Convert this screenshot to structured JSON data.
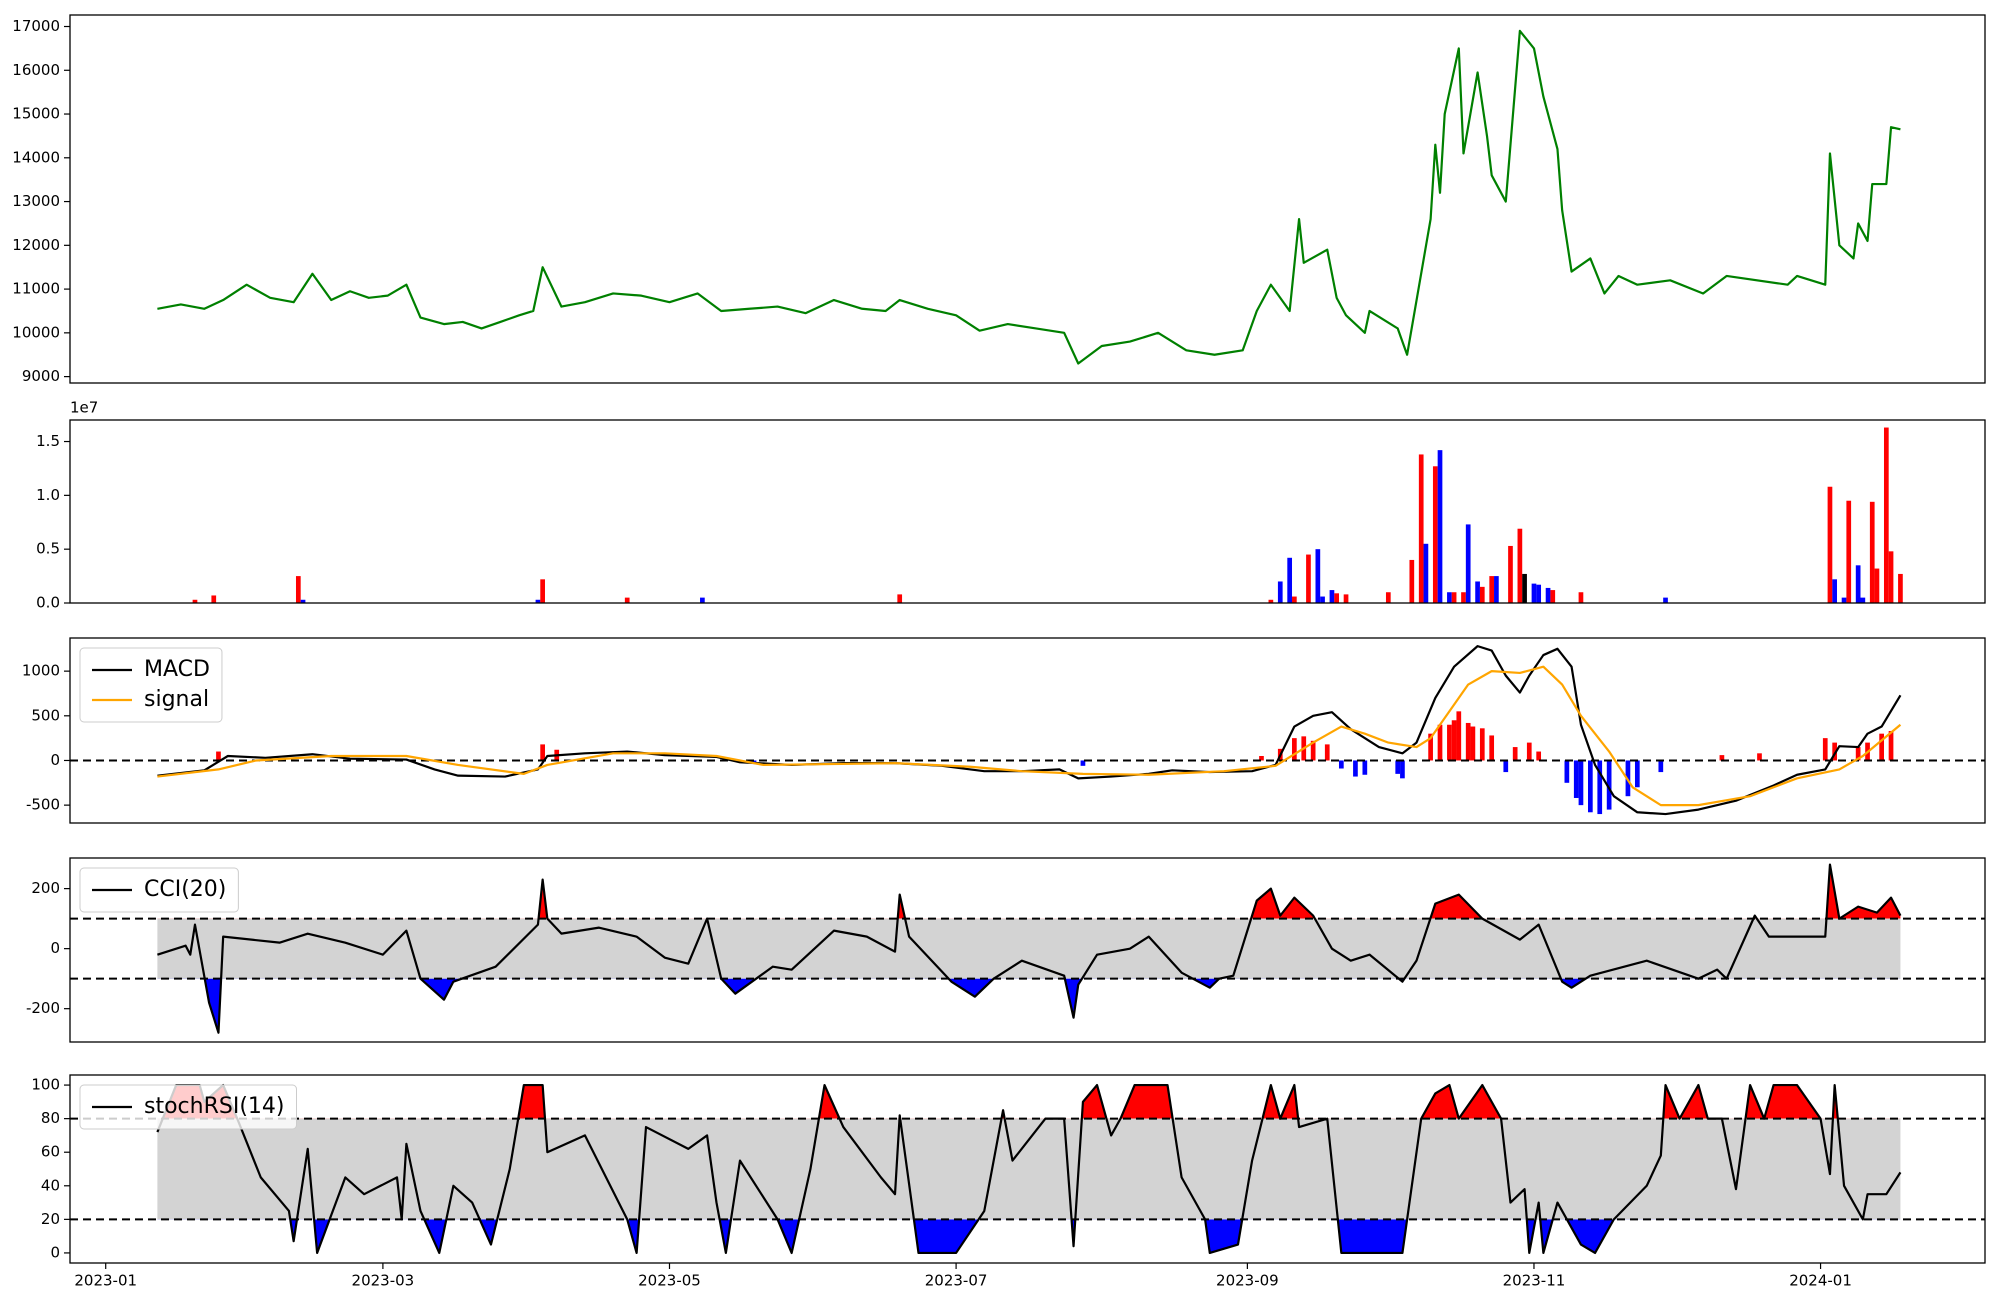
{
  "chart_data": [
    {
      "type": "line",
      "x": [
        11,
        16,
        21,
        25,
        30,
        35,
        40,
        44,
        48,
        52,
        56,
        60,
        64,
        67,
        72,
        76,
        80,
        84,
        88,
        91,
        93,
        97,
        102,
        108,
        114,
        120,
        126,
        131,
        137,
        143,
        149,
        155,
        161,
        166,
        169,
        175,
        181,
        186,
        192,
        198,
        204,
        207,
        212,
        218,
        224,
        230,
        236,
        242,
        245,
        248,
        252,
        254,
        255,
        260,
        262,
        264,
        268,
        269,
        275,
        277,
        282,
        283,
        284,
        285,
        288,
        289,
        292,
        294,
        295,
        298,
        301,
        304,
        306,
        309,
        310,
        312,
        316,
        319,
        322,
        326,
        333,
        340,
        345,
        358,
        360,
        366,
        367,
        369,
        372,
        373,
        375,
        376,
        379,
        380,
        382
      ],
      "series": [
        {
          "color": "#008000",
          "values": [
            10550,
            10650,
            10550,
            10750,
            11100,
            10800,
            10700,
            11350,
            10750,
            10950,
            10800,
            10850,
            11100,
            10350,
            10200,
            10250,
            10100,
            10250,
            10400,
            10500,
            11500,
            10600,
            10700,
            10900,
            10850,
            10700,
            10900,
            10500,
            10550,
            10600,
            10450,
            10750,
            10550,
            10500,
            10750,
            10550,
            10400,
            10050,
            10200,
            10100,
            10000,
            9300,
            9700,
            9800,
            10000,
            9600,
            9500,
            9600,
            10500,
            11100,
            10500,
            12600,
            11600,
            11900,
            10800,
            10400,
            10000,
            10500,
            10100,
            9500,
            12600,
            14300,
            13200,
            15000,
            16500,
            14100,
            15950,
            14500,
            13600,
            13000,
            16900,
            16500,
            15400,
            14200,
            12800,
            11400,
            11700,
            10900,
            11300,
            11100,
            11200,
            10900,
            11300,
            11100,
            11300,
            11100,
            14100,
            12000,
            11700,
            12500,
            12100,
            13400,
            13400,
            14700,
            14650
          ]
        }
      ],
      "xlim": [
        -7.6,
        400
      ],
      "ylim": [
        8854,
        17263
      ],
      "yticks": [
        9000,
        10000,
        11000,
        12000,
        13000,
        14000,
        15000,
        16000,
        17000
      ]
    },
    {
      "type": "bar",
      "offset_label": "1e7",
      "x": [
        19,
        23,
        41,
        42,
        92,
        93,
        111,
        127,
        169,
        248,
        250,
        252,
        253,
        256,
        258,
        259,
        261,
        262,
        264,
        273,
        278,
        280,
        281,
        283,
        284,
        286,
        287,
        289,
        290,
        292,
        293,
        295,
        296,
        299,
        301,
        302,
        304,
        305,
        307,
        308,
        314,
        332,
        367,
        368,
        370,
        371,
        373,
        374,
        376,
        377,
        379,
        380,
        382
      ],
      "values": [
        0.03,
        0.07,
        0.25,
        0.03,
        0.03,
        0.22,
        0.05,
        0.05,
        0.08,
        0.03,
        0.2,
        0.42,
        0.06,
        0.45,
        0.5,
        0.06,
        0.12,
        0.09,
        0.08,
        0.1,
        0.4,
        1.38,
        0.55,
        1.27,
        1.42,
        0.1,
        0.1,
        0.1,
        0.73,
        0.2,
        0.15,
        0.25,
        0.25,
        0.53,
        0.69,
        0.27,
        0.18,
        0.17,
        0.14,
        0.12,
        0.1,
        0.05,
        1.08,
        0.22,
        0.05,
        0.95,
        0.35,
        0.05,
        0.94,
        0.32,
        1.63,
        0.48,
        0.27
      ],
      "colors": [
        "red",
        "red",
        "red",
        "blue",
        "blue",
        "red",
        "red",
        "blue",
        "red",
        "red",
        "blue",
        "blue",
        "red",
        "red",
        "blue",
        "blue",
        "blue",
        "red",
        "red",
        "red",
        "red",
        "red",
        "blue",
        "red",
        "blue",
        "blue",
        "red",
        "red",
        "blue",
        "blue",
        "red",
        "red",
        "blue",
        "red",
        "red",
        "black",
        "blue",
        "blue",
        "blue",
        "red",
        "red",
        "blue",
        "red",
        "blue",
        "blue",
        "red",
        "blue",
        "blue",
        "red",
        "red",
        "red",
        "red",
        "red"
      ],
      "xlim": [
        -7.6,
        400
      ],
      "ylim": [
        0,
        1.7
      ],
      "yticks": [
        {
          "value": 0,
          "label": "0.0"
        },
        0.5,
        {
          "value": 1,
          "label": "1.0"
        },
        1.5
      ]
    },
    {
      "type": "macd",
      "series": [
        {
          "name": "MACD",
          "color": "#000000",
          "x": [
            11,
            21,
            26,
            34,
            44,
            52,
            64,
            70,
            75,
            85,
            92,
            94,
            102,
            111,
            119,
            130,
            135,
            146,
            157,
            168,
            178,
            187,
            195,
            203,
            207,
            214,
            222,
            227,
            235,
            244,
            249,
            253,
            257,
            261,
            265,
            271,
            276,
            279,
            283,
            287,
            292,
            295,
            298,
            301,
            303,
            306,
            309,
            312,
            314,
            317,
            321,
            326,
            332,
            339,
            347,
            355,
            360,
            366,
            369,
            373,
            375,
            378,
            382
          ],
          "values": [
            -170,
            -110,
            50,
            30,
            70,
            20,
            10,
            -100,
            -170,
            -180,
            -100,
            50,
            80,
            100,
            60,
            40,
            -20,
            -50,
            -30,
            -30,
            -60,
            -120,
            -120,
            -100,
            -200,
            -180,
            -150,
            -110,
            -130,
            -120,
            -50,
            380,
            500,
            540,
            350,
            150,
            80,
            200,
            700,
            1050,
            1280,
            1230,
            950,
            760,
            950,
            1180,
            1250,
            1050,
            400,
            -50,
            -400,
            -580,
            -600,
            -550,
            -450,
            -280,
            -160,
            -100,
            160,
            150,
            300,
            380,
            730
          ]
        },
        {
          "name": "signal",
          "color": "#ffa500",
          "x": [
            11,
            24,
            32,
            48,
            64,
            75,
            89,
            94,
            108,
            119,
            130,
            140,
            168,
            184,
            195,
            208,
            222,
            238,
            249,
            257,
            263,
            268,
            273,
            279,
            282,
            290,
            295,
            301,
            306,
            310,
            314,
            320,
            325,
            331,
            339,
            350,
            360,
            369,
            374,
            382
          ],
          "values": [
            -180,
            -100,
            0,
            50,
            50,
            -50,
            -150,
            -50,
            80,
            80,
            50,
            -50,
            -30,
            -70,
            -120,
            -150,
            -160,
            -120,
            -60,
            200,
            380,
            300,
            200,
            150,
            250,
            850,
            1000,
            980,
            1050,
            850,
            500,
            100,
            -300,
            -500,
            -500,
            -400,
            -200,
            -100,
            50,
            400
          ]
        }
      ],
      "histogram": {
        "positive_color": "red",
        "negative_color": "blue",
        "x": [
          24,
          93,
          96,
          138,
          208,
          246,
          250,
          253,
          255,
          257,
          260,
          263,
          266,
          268,
          275,
          276,
          282,
          284,
          286,
          287,
          288,
          290,
          291,
          293,
          295,
          298,
          300,
          303,
          305,
          311,
          313,
          314,
          316,
          318,
          320,
          324,
          326,
          331,
          344,
          352,
          366,
          368,
          373,
          375,
          378,
          380
        ],
        "values": [
          100,
          180,
          120,
          -40,
          -60,
          50,
          130,
          250,
          270,
          220,
          180,
          -90,
          -180,
          -160,
          -150,
          -200,
          300,
          400,
          400,
          450,
          550,
          420,
          380,
          360,
          280,
          -130,
          150,
          200,
          100,
          -250,
          -420,
          -500,
          -580,
          -600,
          -550,
          -400,
          -300,
          -130,
          60,
          80,
          250,
          200,
          150,
          200,
          300,
          330
        ]
      },
      "reference_line": 0,
      "legend": "upper left",
      "xlim": [
        -7.6,
        400
      ],
      "ylim": [
        -700,
        1371
      ],
      "yticks": [
        -500,
        0,
        500,
        1000
      ]
    },
    {
      "type": "oscillator",
      "series": [
        {
          "name": "CCI(20)",
          "color": "#000000",
          "x": [
            11,
            17,
            18,
            19,
            22,
            24,
            25,
            37,
            43,
            51,
            59,
            64,
            67,
            72,
            74,
            83,
            92,
            93,
            94,
            97,
            105,
            113,
            119,
            124,
            128,
            131,
            134,
            142,
            146,
            155,
            162,
            168,
            169,
            171,
            180,
            185,
            189,
            195,
            204,
            206,
            207,
            211,
            218,
            222,
            229,
            235,
            237,
            240,
            245,
            248,
            250,
            253,
            257,
            261,
            265,
            269,
            276,
            279,
            283,
            288,
            293,
            301,
            305,
            310,
            312,
            316,
            328,
            339,
            343,
            345,
            351,
            354,
            366,
            367,
            369,
            373,
            377,
            380,
            382
          ],
          "values": [
            -20,
            10,
            -20,
            80,
            -180,
            -280,
            40,
            20,
            50,
            20,
            -20,
            60,
            -100,
            -170,
            -110,
            -60,
            80,
            230,
            100,
            50,
            70,
            40,
            -30,
            -50,
            100,
            -100,
            -150,
            -60,
            -70,
            60,
            40,
            -10,
            180,
            40,
            -110,
            -160,
            -100,
            -40,
            -90,
            -230,
            -120,
            -20,
            0,
            40,
            -80,
            -130,
            -100,
            -90,
            160,
            200,
            110,
            170,
            110,
            0,
            -40,
            -20,
            -110,
            -40,
            150,
            180,
            100,
            30,
            80,
            -110,
            -130,
            -90,
            -40,
            -100,
            -70,
            -100,
            110,
            40,
            40,
            280,
            100,
            140,
            120,
            170,
            110
          ]
        }
      ],
      "band": [
        -100,
        100
      ],
      "band_color": "#d3d3d3",
      "upper_fill": "red",
      "lower_fill": "blue",
      "legend": "upper left",
      "xlim": [
        -7.6,
        400
      ],
      "ylim": [
        -311,
        302
      ],
      "yticks": [
        -200,
        0,
        200
      ]
    },
    {
      "type": "oscillator",
      "series": [
        {
          "name": "stochRSI(14)",
          "color": "#000000",
          "x": [
            11,
            15,
            20,
            21,
            25,
            28,
            33,
            39,
            40,
            43,
            45,
            51,
            55,
            62,
            63,
            64,
            67,
            71,
            74,
            78,
            82,
            86,
            89,
            93,
            94,
            102,
            111,
            113,
            115,
            124,
            128,
            130,
            132,
            135,
            143,
            146,
            150,
            153,
            157,
            165,
            168,
            169,
            173,
            181,
            187,
            191,
            193,
            200,
            204,
            206,
            208,
            211,
            214,
            216,
            219,
            226,
            229,
            234,
            235,
            241,
            244,
            248,
            250,
            253,
            254,
            260,
            263,
            276,
            280,
            283,
            286,
            288,
            293,
            297,
            299,
            302,
            303,
            305,
            306,
            309,
            314,
            317,
            321,
            328,
            331,
            332,
            335,
            339,
            341,
            344,
            347,
            350,
            353,
            355,
            360,
            365,
            367,
            368,
            370,
            374,
            375,
            379,
            382
          ],
          "values": [
            72,
            100,
            100,
            90,
            100,
            80,
            45,
            25,
            7,
            62,
            0,
            45,
            35,
            45,
            20,
            65,
            25,
            0,
            40,
            30,
            5,
            50,
            100,
            100,
            60,
            70,
            20,
            0,
            75,
            62,
            70,
            30,
            0,
            55,
            20,
            0,
            50,
            100,
            75,
            45,
            35,
            82,
            0,
            0,
            25,
            85,
            55,
            80,
            80,
            4,
            90,
            100,
            70,
            80,
            100,
            100,
            45,
            20,
            0,
            5,
            55,
            100,
            80,
            100,
            75,
            80,
            0,
            0,
            80,
            95,
            100,
            80,
            100,
            80,
            30,
            38,
            0,
            30,
            0,
            30,
            5,
            0,
            20,
            40,
            58,
            100,
            80,
            100,
            80,
            80,
            38,
            100,
            80,
            100,
            100,
            80,
            47,
            100,
            40,
            20,
            35,
            35,
            48
          ]
        }
      ],
      "band": [
        20,
        80
      ],
      "band_color": "#d3d3d3",
      "upper_fill": "red",
      "lower_fill": "blue",
      "legend": "upper left",
      "xlim": [
        -7.6,
        400
      ],
      "ylim": [
        -6,
        106
      ],
      "yticks": [
        0,
        20,
        40,
        60,
        80,
        100
      ],
      "xticks": [
        {
          "value": 0,
          "label": "2023-01"
        },
        {
          "value": 59,
          "label": "2023-03"
        },
        {
          "value": 120,
          "label": "2023-05"
        },
        {
          "value": 181,
          "label": "2023-07"
        },
        {
          "value": 243,
          "label": "2023-09"
        },
        {
          "value": 304,
          "label": "2023-11"
        },
        {
          "value": 365,
          "label": "2024-01"
        }
      ]
    }
  ]
}
